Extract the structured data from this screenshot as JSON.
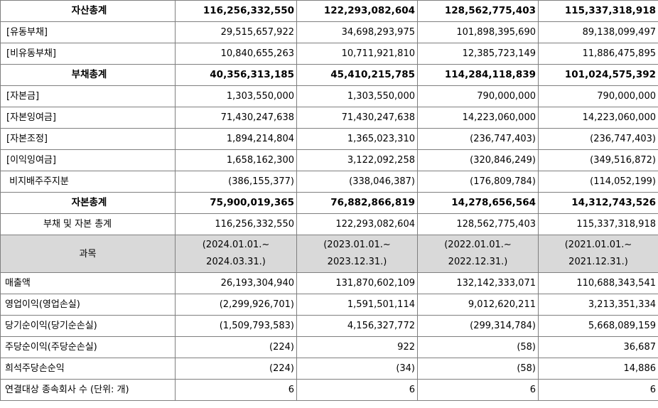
{
  "balance_rows": [
    {
      "label": "자산총계",
      "bold": true,
      "align": "center",
      "values": [
        "116,256,332,550",
        "122,293,082,604",
        "128,562,775,403",
        "115,337,318,918"
      ]
    },
    {
      "label": "[유동부채]",
      "bold": false,
      "align": "left",
      "values": [
        "29,515,657,922",
        "34,698,293,975",
        "101,898,395,690",
        "89,138,099,497"
      ]
    },
    {
      "label": "[비유동부채]",
      "bold": false,
      "align": "left",
      "values": [
        "10,840,655,263",
        "10,711,921,810",
        "12,385,723,149",
        "11,886,475,895"
      ]
    },
    {
      "label": "부채총계",
      "bold": true,
      "align": "center",
      "values": [
        "40,356,313,185",
        "45,410,215,785",
        "114,284,118,839",
        "101,024,575,392"
      ]
    },
    {
      "label": "[자본금]",
      "bold": false,
      "align": "left",
      "values": [
        "1,303,550,000",
        "1,303,550,000",
        "790,000,000",
        "790,000,000"
      ]
    },
    {
      "label": "[자본잉여금]",
      "bold": false,
      "align": "left",
      "values": [
        "71,430,247,638",
        "71,430,247,638",
        "14,223,060,000",
        "14,223,060,000"
      ]
    },
    {
      "label": "[자본조정]",
      "bold": false,
      "align": "left",
      "values": [
        "1,894,214,804",
        "1,365,023,310",
        "(236,747,403)",
        "(236,747,403)"
      ]
    },
    {
      "label": "[이익잉여금]",
      "bold": false,
      "align": "left",
      "values": [
        "1,658,162,300",
        "3,122,092,258",
        "(320,846,249)",
        "(349,516,872)"
      ]
    },
    {
      "label": " 비지배주주지분",
      "bold": false,
      "align": "left",
      "values": [
        "(386,155,377)",
        "(338,046,387)",
        "(176,809,784)",
        "(114,052,199)"
      ]
    },
    {
      "label": "자본총계",
      "bold": true,
      "align": "center",
      "values": [
        "75,900,019,365",
        "76,882,866,819",
        "14,278,656,564",
        "14,312,743,526"
      ]
    },
    {
      "label": "부채 및 자본 총계",
      "bold": false,
      "align": "indent",
      "values": [
        "116,256,332,550",
        "122,293,082,604",
        "128,562,775,403",
        "115,337,318,918"
      ]
    }
  ],
  "header": {
    "label": "과목",
    "periods": [
      {
        "line1": "(2024.01.01.~",
        "line2": "2024.03.31.)"
      },
      {
        "line1": "(2023.01.01.~",
        "line2": "2023.12.31.)"
      },
      {
        "line1": "(2022.01.01.~",
        "line2": "2022.12.31.)"
      },
      {
        "line1": "(2021.01.01.~",
        "line2": "2021.12.31.)"
      }
    ]
  },
  "income_rows": [
    {
      "label": "매출액",
      "values": [
        "26,193,304,940",
        "131,870,602,109",
        "132,142,333,071",
        "110,688,343,541"
      ]
    },
    {
      "label": "영업이익(영업손실)",
      "values": [
        "(2,299,926,701)",
        "1,591,501,114",
        "9,012,620,211",
        "3,213,351,334"
      ]
    },
    {
      "label": "당기순이익(당기순손실)",
      "values": [
        "(1,509,793,583)",
        "4,156,327,772",
        "(299,314,784)",
        "5,668,089,159"
      ]
    },
    {
      "label": "주당순이익(주당순손실)",
      "values": [
        "(224)",
        "922",
        "(58)",
        "36,687"
      ]
    },
    {
      "label": "희석주당손순익",
      "values": [
        "(224)",
        "(34)",
        "(58)",
        "14,886"
      ]
    },
    {
      "label": "연결대상 종속회사 수 (단위: 개)",
      "values": [
        "6",
        "6",
        "6",
        "6"
      ]
    }
  ]
}
